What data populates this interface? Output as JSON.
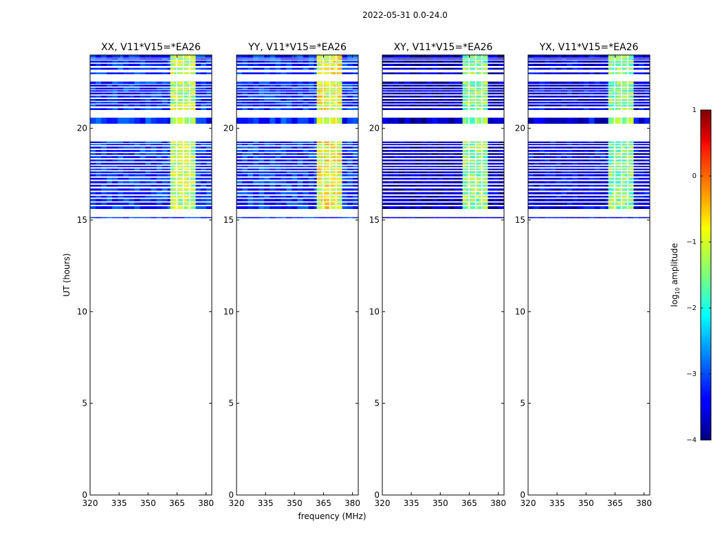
{
  "figure": {
    "suptitle": "2022-05-31 0.0-24.0",
    "ylabel": "UT (hours)",
    "xlabel": "frequency (MHz)"
  },
  "chart_data": {
    "type": "heatmap",
    "colormap": "jet",
    "xlim": [
      320,
      383
    ],
    "ylim": [
      0,
      24
    ],
    "xticks": [
      320,
      335,
      350,
      365,
      380
    ],
    "yticks": [
      0,
      5,
      10,
      15,
      20
    ],
    "colorbar": {
      "label": "log10 amplitude",
      "label_base": "log",
      "label_sub": "10",
      "label_rest": " amplitude",
      "range": [
        -4,
        1
      ],
      "ticks": [
        1,
        0,
        -1,
        -2,
        -3,
        -4
      ],
      "tick_labels": [
        "1",
        "0",
        "−1",
        "−2",
        "−3",
        "−4"
      ]
    },
    "observed_rows_ut": [
      [
        15.1,
        15.16
      ],
      [
        15.6,
        15.75
      ],
      [
        15.82,
        15.95
      ],
      [
        16.02,
        16.15
      ],
      [
        16.22,
        16.32
      ],
      [
        16.4,
        16.52
      ],
      [
        16.6,
        16.72
      ],
      [
        16.82,
        16.92
      ],
      [
        17.0,
        17.12
      ],
      [
        17.2,
        17.3
      ],
      [
        17.38,
        17.5
      ],
      [
        17.55,
        17.65
      ],
      [
        17.72,
        17.8
      ],
      [
        17.88,
        17.95
      ],
      [
        18.02,
        18.12
      ],
      [
        18.2,
        18.3
      ],
      [
        18.38,
        18.48
      ],
      [
        18.55,
        18.65
      ],
      [
        18.72,
        18.82
      ],
      [
        18.9,
        19.0
      ],
      [
        19.08,
        19.15
      ],
      [
        19.2,
        19.28
      ],
      [
        20.25,
        20.58
      ],
      [
        21.0,
        21.1
      ],
      [
        21.2,
        21.3
      ],
      [
        21.35,
        21.45
      ],
      [
        21.5,
        21.6
      ],
      [
        21.68,
        21.78
      ],
      [
        21.85,
        21.95
      ],
      [
        22.0,
        22.08
      ],
      [
        22.12,
        22.22
      ],
      [
        22.28,
        22.38
      ],
      [
        22.42,
        22.55
      ],
      [
        22.95,
        23.05
      ],
      [
        23.2,
        23.3
      ],
      [
        23.4,
        23.52
      ],
      [
        23.58,
        23.7
      ],
      [
        23.75,
        23.82
      ],
      [
        23.85,
        23.98
      ]
    ],
    "rfi_band_mhz": [
      361.5,
      374.5
    ],
    "rfi_channel_gaps_mhz": [
      [
        364.5,
        365.2
      ],
      [
        368.0,
        368.7
      ],
      [
        371.2,
        371.9
      ]
    ],
    "panels": [
      {
        "title": "XX, V11*V15=*EA26",
        "baseline_log_amp": -3.2,
        "rfi_log_amp": -1.2
      },
      {
        "title": "YY, V11*V15=*EA26",
        "baseline_log_amp": -3.2,
        "rfi_log_amp": -0.9
      },
      {
        "title": "XY, V11*V15=*EA26",
        "baseline_log_amp": -3.7,
        "rfi_log_amp": -1.5
      },
      {
        "title": "YX, V11*V15=*EA26",
        "baseline_log_amp": -3.5,
        "rfi_log_amp": -1.5
      }
    ]
  }
}
